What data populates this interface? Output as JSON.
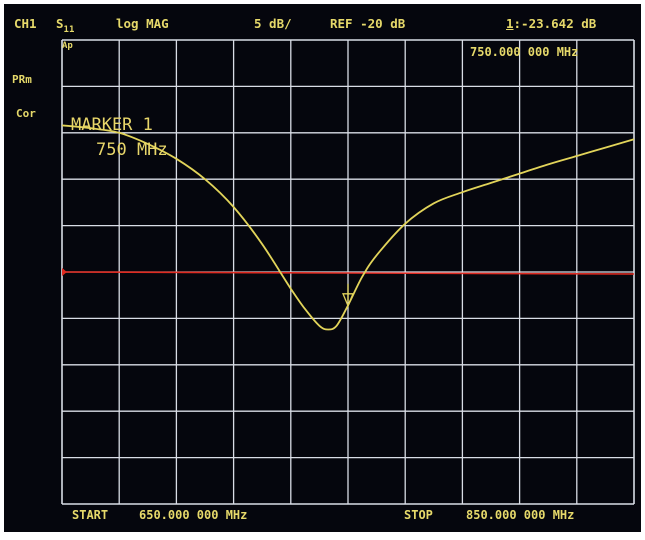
{
  "header": {
    "channel": "CH1",
    "param_main": "S",
    "param_sub": "11",
    "format": "log MAG",
    "scale": "5 dB/",
    "ref": "REF -20 dB",
    "marker_index": "1",
    "marker_readout": ":-23.642 dB"
  },
  "marker_freq_readout": "750.000 000 MHz",
  "side_labels": {
    "ap": "Ap",
    "prm": "PRm",
    "cor": "Cor"
  },
  "annotation": {
    "line1": "MARKER 1",
    "line2": "750 MHz"
  },
  "footer": {
    "start_label": "START",
    "start_value": "650.000 000 MHz",
    "stop_label": "STOP",
    "stop_value": "850.000 000 MHz"
  },
  "colors": {
    "background": "#05060d",
    "grid": "#d9dde6",
    "trace": "#e2d45a",
    "reference_line": "#e02a20",
    "text": "#e6d96a"
  },
  "chart_data": {
    "type": "line",
    "x_unit": "MHz",
    "y_unit": "dB",
    "xlim": [
      650,
      850
    ],
    "ylim": [
      -45,
      5
    ],
    "grid": true,
    "divisions": {
      "x": 10,
      "y": 10
    },
    "reference_level": -20,
    "scale_per_div": 5,
    "marker": {
      "x": 750,
      "y": -23.642
    },
    "series": [
      {
        "x": [
          650,
          660,
          670,
          680,
          690,
          700,
          710,
          720,
          730,
          735,
          740,
          743,
          746,
          750,
          755,
          760,
          770,
          780,
          790,
          800,
          810,
          820,
          830,
          840,
          850
        ],
        "y": [
          -4.2,
          -4.5,
          -5.0,
          -6.2,
          -7.8,
          -10.0,
          -13.0,
          -17.0,
          -21.8,
          -24.0,
          -25.8,
          -26.2,
          -25.8,
          -23.6,
          -20.5,
          -18.2,
          -14.8,
          -12.6,
          -11.4,
          -10.4,
          -9.4,
          -8.4,
          -7.5,
          -6.6,
          -5.7
        ]
      }
    ]
  }
}
